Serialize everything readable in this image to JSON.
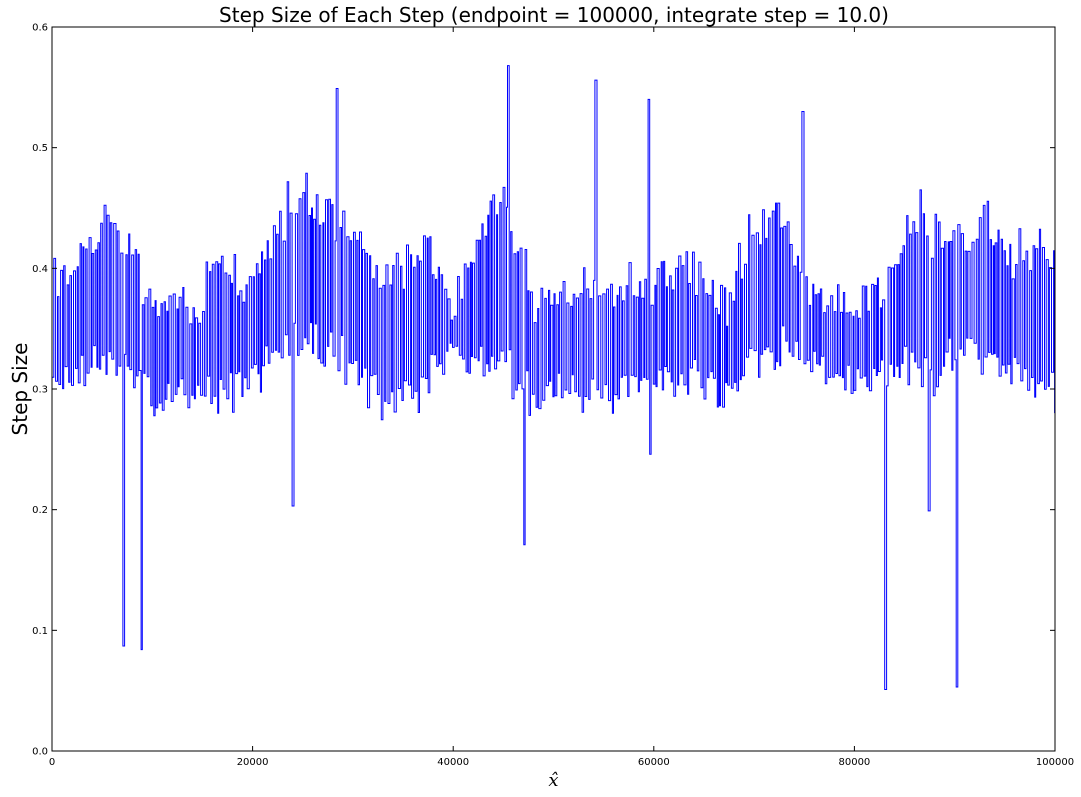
{
  "chart_data": {
    "type": "line",
    "title": "Step Size of Each Step (endpoint = 100000, integrate step = 10.0)",
    "xlabel": "x̂",
    "ylabel": "Step Size",
    "xlim": [
      0,
      100000
    ],
    "ylim": [
      0.0,
      0.6
    ],
    "x_ticks": [
      0,
      20000,
      40000,
      60000,
      80000,
      100000
    ],
    "x_tick_labels": [
      "0",
      "20000",
      "40000",
      "60000",
      "80000",
      "100000"
    ],
    "y_ticks": [
      0.0,
      0.1,
      0.2,
      0.3,
      0.4,
      0.5,
      0.6
    ],
    "y_tick_labels": [
      "0.0",
      "0.1",
      "0.2",
      "0.3",
      "0.4",
      "0.5",
      "0.6"
    ],
    "grid": false,
    "series": [
      {
        "color": "#0000ff",
        "band_low_x": [
          0,
          8000,
          10000,
          15000,
          17000,
          20000,
          24000,
          30000,
          33000,
          37000,
          40000,
          45000,
          48000,
          52000,
          56000,
          60000,
          65000,
          68000,
          72000,
          76000,
          80000,
          85000,
          88000,
          92000,
          96000,
          100000
        ],
        "band_low_y": [
          0.3,
          0.32,
          0.29,
          0.3,
          0.29,
          0.31,
          0.33,
          0.32,
          0.29,
          0.3,
          0.33,
          0.31,
          0.29,
          0.3,
          0.29,
          0.31,
          0.3,
          0.3,
          0.33,
          0.32,
          0.31,
          0.32,
          0.31,
          0.33,
          0.31,
          0.3
        ],
        "band_high_x": [
          0,
          3000,
          7000,
          10000,
          15000,
          17000,
          20000,
          23000,
          27000,
          30000,
          33000,
          37000,
          40000,
          43000,
          45000,
          48000,
          52000,
          56000,
          60000,
          63000,
          67000,
          70000,
          73000,
          76000,
          80000,
          83000,
          86000,
          90000,
          93000,
          96000,
          100000
        ],
        "band_high_y": [
          0.39,
          0.43,
          0.44,
          0.37,
          0.37,
          0.43,
          0.38,
          0.46,
          0.46,
          0.45,
          0.39,
          0.43,
          0.37,
          0.44,
          0.47,
          0.38,
          0.38,
          0.4,
          0.38,
          0.42,
          0.37,
          0.44,
          0.44,
          0.38,
          0.37,
          0.38,
          0.45,
          0.43,
          0.44,
          0.42,
          0.43
        ],
        "spikes": [
          {
            "x": 7200,
            "y": 0.087
          },
          {
            "x": 8900,
            "y": 0.084
          },
          {
            "x": 24100,
            "y": 0.203
          },
          {
            "x": 47100,
            "y": 0.171
          },
          {
            "x": 59600,
            "y": 0.246
          },
          {
            "x": 83100,
            "y": 0.051
          },
          {
            "x": 87400,
            "y": 0.199
          },
          {
            "x": 90200,
            "y": 0.053
          },
          {
            "x": 28400,
            "y": 0.549
          },
          {
            "x": 45500,
            "y": 0.568
          },
          {
            "x": 54300,
            "y": 0.556
          },
          {
            "x": 74900,
            "y": 0.53
          },
          {
            "x": 59500,
            "y": 0.54
          }
        ]
      }
    ]
  }
}
